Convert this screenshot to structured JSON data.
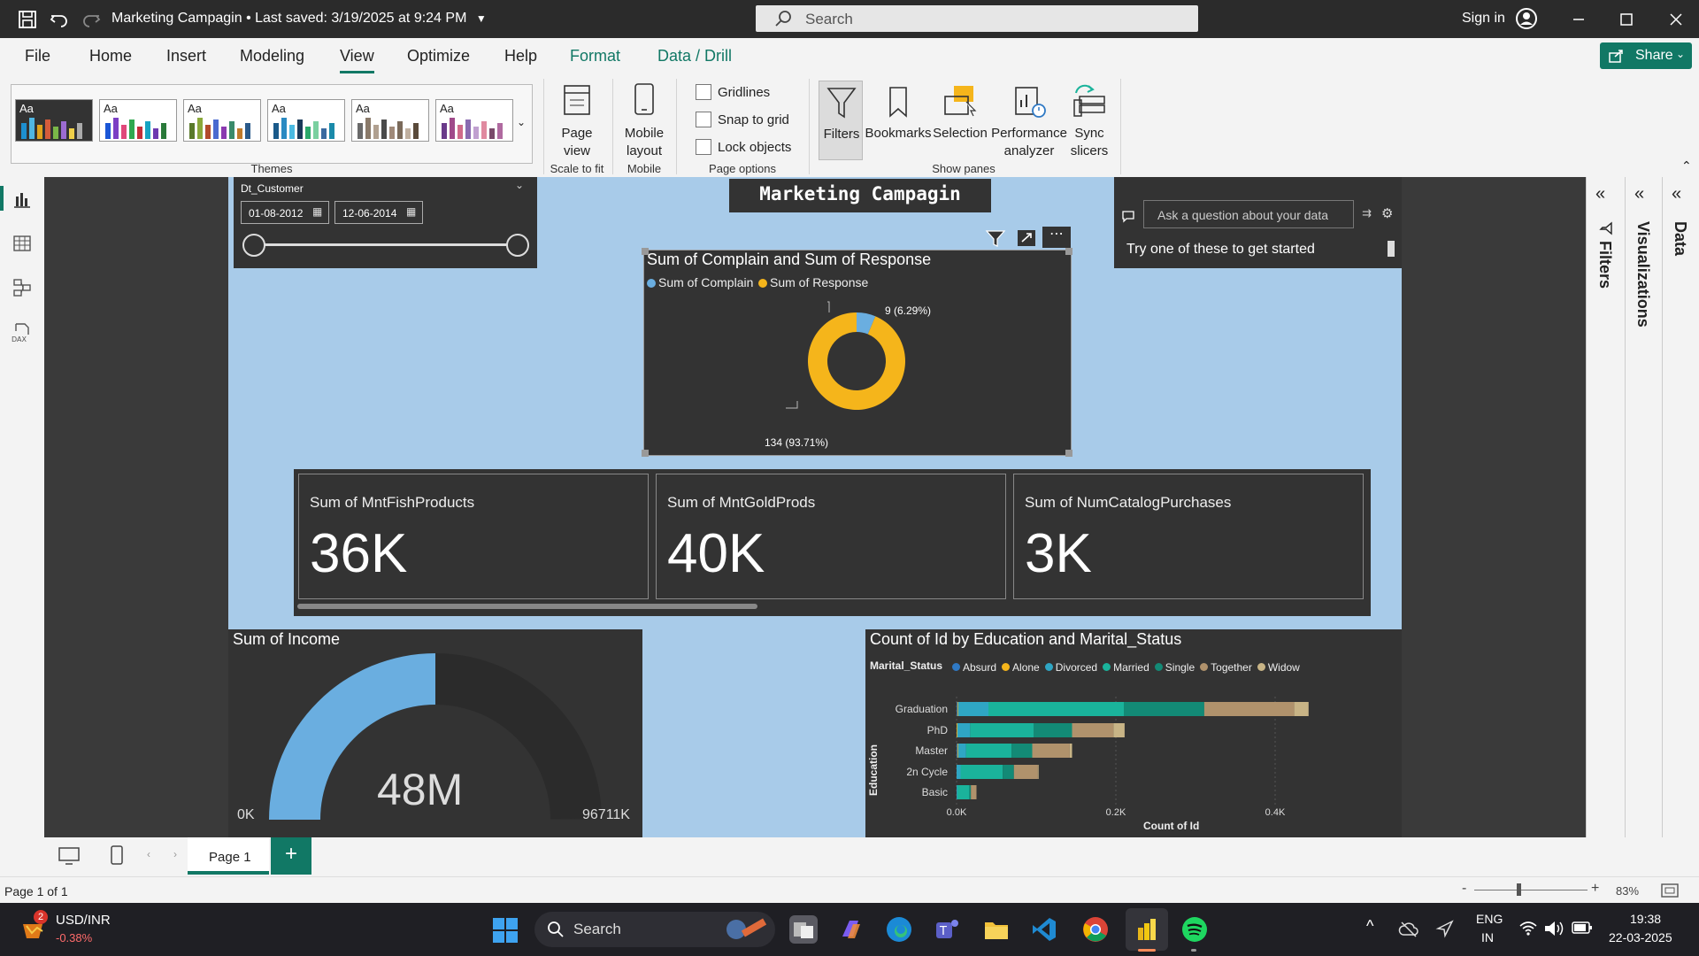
{
  "titlebar": {
    "doc_title": "Marketing Campagin",
    "saved_status": "Last saved: 3/19/2025 at 9:24 PM",
    "search_placeholder": "Search",
    "sign_in": "Sign in"
  },
  "menu": {
    "items": [
      "File",
      "Home",
      "Insert",
      "Modeling",
      "View",
      "Optimize",
      "Help",
      "Format",
      "Data / Drill"
    ],
    "active": "View",
    "share": "Share"
  },
  "ribbon": {
    "themes_label": "Themes",
    "theme_aa": "Aa",
    "page_view": "Page view",
    "scale_to_fit": "Scale to fit",
    "mobile_layout": "Mobile layout",
    "mobile_group": "Mobile",
    "gridlines": "Gridlines",
    "snap_to_grid": "Snap to grid",
    "lock_objects": "Lock objects",
    "page_options": "Page options",
    "filters": "Filters",
    "bookmarks": "Bookmarks",
    "selection": "Selection",
    "performance_analyzer": "Performance analyzer",
    "sync_slicers": "Sync slicers",
    "show_panes": "Show panes"
  },
  "slicer": {
    "title": "Dt_Customer",
    "start": "01-08-2012",
    "end": "12-06-2014"
  },
  "report_title": "Marketing Campagin",
  "qa": {
    "placeholder": "Ask a question about your data",
    "hint": "Try one of these to get started"
  },
  "donut": {
    "title": "Sum of Complain and Sum of Response",
    "legend": [
      "Sum of Complain",
      "Sum of Response"
    ],
    "colors": [
      "#6aaee0",
      "#f5b51b"
    ],
    "label_small": "9 (6.29%)",
    "label_large": "134 (93.71%)"
  },
  "kpis": [
    {
      "label": "Sum of MntFishProducts",
      "value": "36K"
    },
    {
      "label": "Sum of MntGoldProds",
      "value": "40K"
    },
    {
      "label": "Sum of NumCatalogPurchases",
      "value": "3K"
    }
  ],
  "gauge": {
    "title": "Sum of Income",
    "value": "48M",
    "min": "0K",
    "max": "96711K",
    "fraction": 0.5
  },
  "bar_chart": {
    "title": "Count of Id by Education and Marital_Status",
    "legend_title": "Marital_Status",
    "ylabel": "Education",
    "xlabel": "Count of Id",
    "xticks": [
      "0.0K",
      "0.2K",
      "0.4K"
    ]
  },
  "chart_data": {
    "type": "bar",
    "orientation": "horizontal",
    "stacked": true,
    "categories": [
      "Graduation",
      "PhD",
      "Master",
      "2n Cycle",
      "Basic"
    ],
    "series": [
      {
        "name": "Absurd",
        "color": "#2f79c4",
        "values": [
          1,
          0,
          1,
          0,
          0
        ]
      },
      {
        "name": "Alone",
        "color": "#f5b51b",
        "values": [
          1,
          1,
          1,
          0,
          0
        ]
      },
      {
        "name": "Divorced",
        "color": "#2fa6c4",
        "values": [
          38,
          16,
          10,
          5,
          1
        ]
      },
      {
        "name": "Married",
        "color": "#1ab39b",
        "values": [
          170,
          80,
          57,
          53,
          15
        ]
      },
      {
        "name": "Single",
        "color": "#138a76",
        "values": [
          101,
          48,
          26,
          14,
          2
        ]
      },
      {
        "name": "Together",
        "color": "#b0926c",
        "values": [
          113,
          52,
          47,
          30,
          7
        ]
      },
      {
        "name": "Widow",
        "color": "#c8b486",
        "values": [
          18,
          14,
          3,
          1,
          0
        ]
      }
    ],
    "xlim": [
      0,
      450
    ]
  },
  "pages": {
    "tab": "Page 1",
    "status": "Page 1 of 1",
    "zoom": "83%"
  },
  "taskbar": {
    "ticker": "USD/INR",
    "change": "-0.38%",
    "badge": "2",
    "search": "Search",
    "lang1": "ENG",
    "lang2": "IN",
    "time": "19:38",
    "date": "22-03-2025"
  },
  "panes": {
    "filters": "Filters",
    "visualizations": "Visualizations",
    "data": "Data"
  }
}
